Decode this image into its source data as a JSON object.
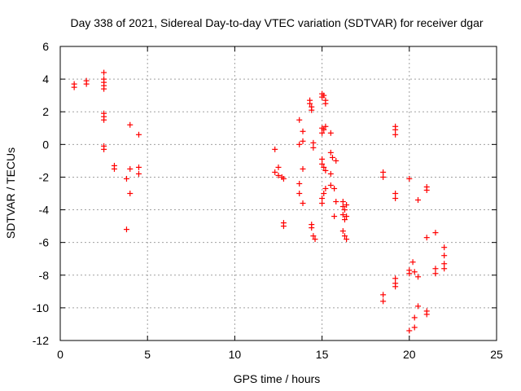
{
  "chart_data": {
    "type": "scatter",
    "title": "Day 338 of 2021, Sidereal Day-to-day VTEC variation (SDTVAR) for receiver dgar",
    "xlabel": "GPS time / hours",
    "ylabel": "SDTVAR / TECUs",
    "xlim": [
      0,
      25
    ],
    "ylim": [
      -12,
      6
    ],
    "xticks": [
      "0",
      "5",
      "10",
      "15",
      "20",
      "25"
    ],
    "yticks": [
      "-12",
      "-10",
      "-8",
      "-6",
      "-4",
      "-2",
      "0",
      "2",
      "4",
      "6"
    ],
    "grid": true,
    "marker": "+",
    "color": "#ff0000",
    "series": [
      {
        "name": "SDTVAR",
        "points": [
          [
            0.8,
            3.7
          ],
          [
            0.8,
            3.5
          ],
          [
            1.5,
            3.9
          ],
          [
            1.5,
            3.7
          ],
          [
            2.5,
            4.4
          ],
          [
            2.5,
            4.0
          ],
          [
            2.5,
            3.8
          ],
          [
            2.5,
            3.6
          ],
          [
            2.5,
            3.4
          ],
          [
            2.5,
            1.9
          ],
          [
            2.5,
            1.7
          ],
          [
            2.5,
            1.5
          ],
          [
            2.5,
            -0.1
          ],
          [
            2.5,
            -0.3
          ],
          [
            3.1,
            -1.3
          ],
          [
            3.1,
            -1.5
          ],
          [
            3.8,
            -2.1
          ],
          [
            3.8,
            -5.2
          ],
          [
            4.0,
            1.2
          ],
          [
            4.0,
            -1.5
          ],
          [
            4.0,
            -3.0
          ],
          [
            4.5,
            0.6
          ],
          [
            4.5,
            -1.4
          ],
          [
            4.5,
            -1.8
          ],
          [
            12.3,
            -0.3
          ],
          [
            12.3,
            -1.7
          ],
          [
            12.5,
            -1.9
          ],
          [
            12.5,
            -1.4
          ],
          [
            12.7,
            -2.0
          ],
          [
            12.8,
            -2.1
          ],
          [
            12.8,
            -4.8
          ],
          [
            12.8,
            -5.0
          ],
          [
            13.7,
            1.5
          ],
          [
            13.7,
            0.0
          ],
          [
            13.7,
            -2.4
          ],
          [
            13.7,
            -3.0
          ],
          [
            13.9,
            0.8
          ],
          [
            13.9,
            0.2
          ],
          [
            13.9,
            -1.5
          ],
          [
            13.9,
            -3.6
          ],
          [
            14.3,
            2.7
          ],
          [
            14.3,
            2.5
          ],
          [
            14.4,
            2.3
          ],
          [
            14.4,
            2.1
          ],
          [
            14.5,
            0.1
          ],
          [
            14.5,
            -0.2
          ],
          [
            14.4,
            -4.9
          ],
          [
            14.4,
            -5.1
          ],
          [
            14.5,
            -5.6
          ],
          [
            14.6,
            -5.8
          ],
          [
            15.0,
            3.1
          ],
          [
            15.0,
            2.9
          ],
          [
            15.1,
            3.0
          ],
          [
            15.2,
            2.7
          ],
          [
            15.2,
            2.5
          ],
          [
            15.0,
            1.0
          ],
          [
            15.0,
            0.7
          ],
          [
            15.1,
            0.9
          ],
          [
            15.2,
            1.1
          ],
          [
            15.0,
            -0.9
          ],
          [
            15.0,
            -1.2
          ],
          [
            15.1,
            -1.4
          ],
          [
            15.2,
            -1.6
          ],
          [
            15.0,
            -3.3
          ],
          [
            15.0,
            -3.6
          ],
          [
            15.1,
            -3.0
          ],
          [
            15.2,
            -2.7
          ],
          [
            15.5,
            0.7
          ],
          [
            15.5,
            -0.5
          ],
          [
            15.6,
            -0.8
          ],
          [
            15.5,
            -1.8
          ],
          [
            15.5,
            -2.5
          ],
          [
            15.7,
            -2.7
          ],
          [
            15.8,
            -1.0
          ],
          [
            15.8,
            -3.5
          ],
          [
            15.7,
            -4.4
          ],
          [
            16.2,
            -3.5
          ],
          [
            16.2,
            -3.8
          ],
          [
            16.3,
            -4.0
          ],
          [
            16.2,
            -4.3
          ],
          [
            16.3,
            -4.6
          ],
          [
            16.4,
            -3.7
          ],
          [
            16.4,
            -4.4
          ],
          [
            16.2,
            -5.3
          ],
          [
            16.3,
            -5.6
          ],
          [
            16.4,
            -5.8
          ],
          [
            18.5,
            -1.7
          ],
          [
            18.5,
            -2.0
          ],
          [
            18.5,
            -9.2
          ],
          [
            18.5,
            -9.6
          ],
          [
            19.2,
            1.1
          ],
          [
            19.2,
            0.9
          ],
          [
            19.2,
            0.6
          ],
          [
            19.2,
            -3.0
          ],
          [
            19.2,
            -3.3
          ],
          [
            19.2,
            -8.2
          ],
          [
            19.2,
            -8.5
          ],
          [
            19.2,
            -8.7
          ],
          [
            20.0,
            -2.1
          ],
          [
            20.0,
            -7.7
          ],
          [
            20.0,
            -7.9
          ],
          [
            20.2,
            -7.2
          ],
          [
            20.3,
            -7.8
          ],
          [
            20.5,
            -3.4
          ],
          [
            20.5,
            -8.1
          ],
          [
            20.5,
            -9.9
          ],
          [
            20.0,
            -11.4
          ],
          [
            20.3,
            -11.2
          ],
          [
            20.3,
            -10.6
          ],
          [
            21.0,
            -2.6
          ],
          [
            21.0,
            -2.8
          ],
          [
            21.0,
            -5.7
          ],
          [
            21.0,
            -10.2
          ],
          [
            21.0,
            -10.4
          ],
          [
            21.5,
            -5.4
          ],
          [
            21.5,
            -7.6
          ],
          [
            21.5,
            -7.9
          ],
          [
            22.0,
            -6.3
          ],
          [
            22.0,
            -6.8
          ],
          [
            22.0,
            -7.3
          ],
          [
            22.0,
            -7.6
          ]
        ]
      }
    ]
  }
}
